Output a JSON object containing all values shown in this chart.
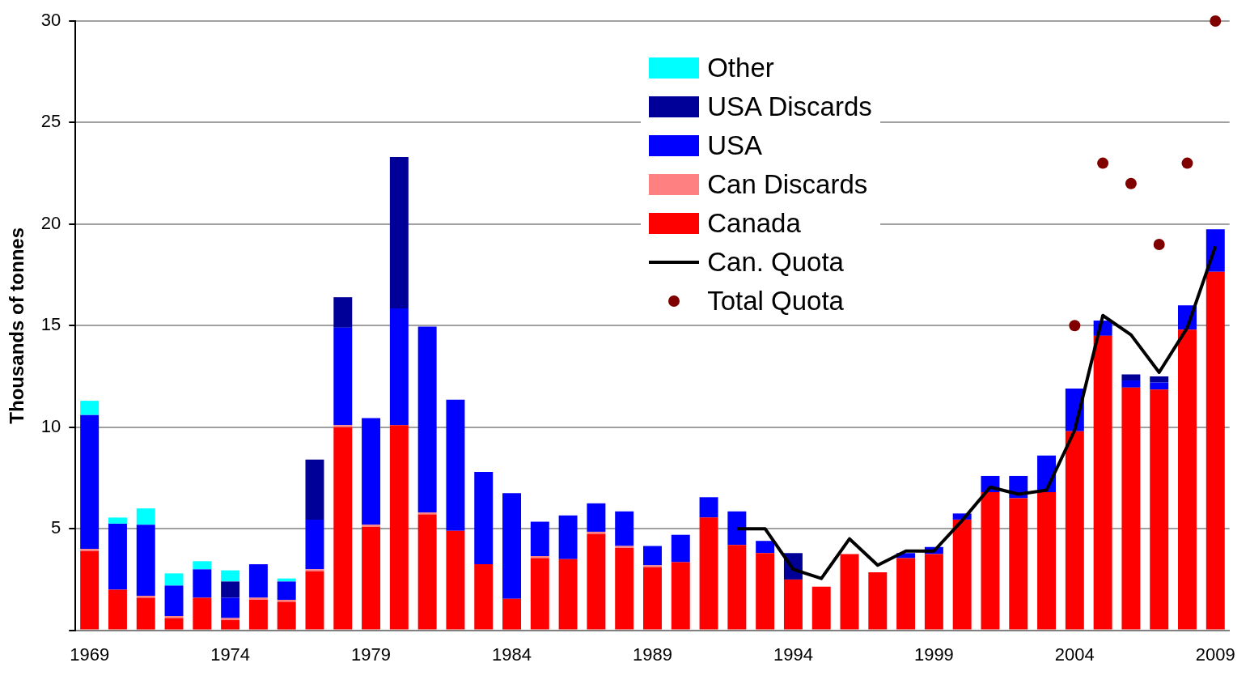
{
  "chart_data": {
    "type": "bar",
    "ylabel": "Thousands of tonnes",
    "stacked": true,
    "grid": "y",
    "legend": "top",
    "ylim": [
      0,
      30
    ],
    "yticks": [
      {
        "value": 0,
        "label": null
      },
      5,
      10,
      15,
      20,
      25,
      30
    ],
    "categories": [
      "1969",
      null,
      null,
      null,
      null,
      "1974",
      null,
      null,
      null,
      null,
      "1979",
      null,
      null,
      null,
      null,
      "1984",
      null,
      null,
      null,
      null,
      "1989",
      null,
      null,
      null,
      null,
      "1994",
      null,
      null,
      null,
      null,
      "1999",
      null,
      null,
      null,
      null,
      "2004",
      null,
      null,
      null,
      null,
      "2009"
    ],
    "series": [
      {
        "name": "Canada",
        "color": "#ff0000",
        "values": [
          3.9,
          2.0,
          1.6,
          0.6,
          1.6,
          0.5,
          1.5,
          1.4,
          2.9,
          10.0,
          5.1,
          10.1,
          5.7,
          4.9,
          3.25,
          1.55,
          3.55,
          3.5,
          4.75,
          4.05,
          3.1,
          3.35,
          5.55,
          4.2,
          3.8,
          2.5,
          2.15,
          3.75,
          2.85,
          3.55,
          3.75,
          5.45,
          6.8,
          6.5,
          6.8,
          9.8,
          14.5,
          11.95,
          11.85,
          14.8,
          17.65
        ]
      },
      {
        "name": "Can Discards",
        "color": "#ff8080",
        "values": [
          0.1,
          0,
          0.1,
          0.1,
          0,
          0.1,
          0.1,
          0.1,
          0.1,
          0.1,
          0.1,
          0,
          0.1,
          0,
          0,
          0,
          0.1,
          0,
          0.1,
          0.1,
          0.1,
          0,
          0,
          0,
          0,
          0,
          0,
          0,
          0,
          0,
          0,
          0,
          0,
          0,
          0,
          0,
          0,
          0,
          0,
          0,
          0
        ]
      },
      {
        "name": "USA",
        "color": "#0000ff",
        "values": [
          6.6,
          3.25,
          3.5,
          1.5,
          1.4,
          1.0,
          1.65,
          0.9,
          2.45,
          4.8,
          5.25,
          5.75,
          9.15,
          6.45,
          4.55,
          5.2,
          1.7,
          2.15,
          1.4,
          1.7,
          0.95,
          1.35,
          1.0,
          1.65,
          0.6,
          0,
          0,
          0,
          0,
          0.25,
          0.35,
          0.3,
          0.8,
          1.1,
          1.8,
          2.1,
          0.75,
          0.35,
          0.35,
          1.2,
          2.1
        ]
      },
      {
        "name": "USA Discards",
        "color": "#000099",
        "values": [
          0,
          0,
          0,
          0,
          0,
          0.8,
          0,
          0,
          2.95,
          1.5,
          0,
          7.45,
          0,
          0,
          0,
          0,
          0,
          0,
          0,
          0,
          0,
          0,
          0,
          0,
          0,
          1.3,
          0,
          0,
          0,
          0,
          0,
          0,
          0,
          0,
          0,
          0,
          0,
          0.3,
          0.3,
          0,
          0
        ]
      },
      {
        "name": "Other",
        "color": "#00ffff",
        "values": [
          0.7,
          0.3,
          0.8,
          0.6,
          0.4,
          0.55,
          0,
          0.15,
          0,
          0,
          0,
          0,
          0,
          0,
          0,
          0,
          0,
          0,
          0,
          0,
          0,
          0,
          0,
          0,
          0,
          0,
          0,
          0,
          0,
          0,
          0,
          0,
          0,
          0,
          0,
          0,
          0,
          0,
          0,
          0,
          0
        ]
      },
      {
        "name": "Can. Quota",
        "type": "line",
        "marker": "none",
        "color": "#000000",
        "values": [
          null,
          null,
          null,
          null,
          null,
          null,
          null,
          null,
          null,
          null,
          null,
          null,
          null,
          null,
          null,
          null,
          null,
          null,
          null,
          null,
          null,
          null,
          null,
          5.0,
          5.0,
          3.0,
          2.55,
          4.5,
          3.2,
          3.9,
          3.9,
          5.4,
          7.05,
          6.7,
          6.9,
          9.85,
          15.5,
          14.55,
          12.7,
          14.9,
          18.9
        ]
      },
      {
        "name": "Total Quota",
        "type": "scatter",
        "marker": "circle",
        "color": "#800000",
        "values": [
          null,
          null,
          null,
          null,
          null,
          null,
          null,
          null,
          null,
          null,
          null,
          null,
          null,
          null,
          null,
          null,
          null,
          null,
          null,
          null,
          null,
          null,
          null,
          null,
          null,
          null,
          null,
          null,
          null,
          null,
          null,
          null,
          null,
          null,
          null,
          15.0,
          23.0,
          22.0,
          19.0,
          23.0,
          30.0
        ]
      }
    ]
  }
}
